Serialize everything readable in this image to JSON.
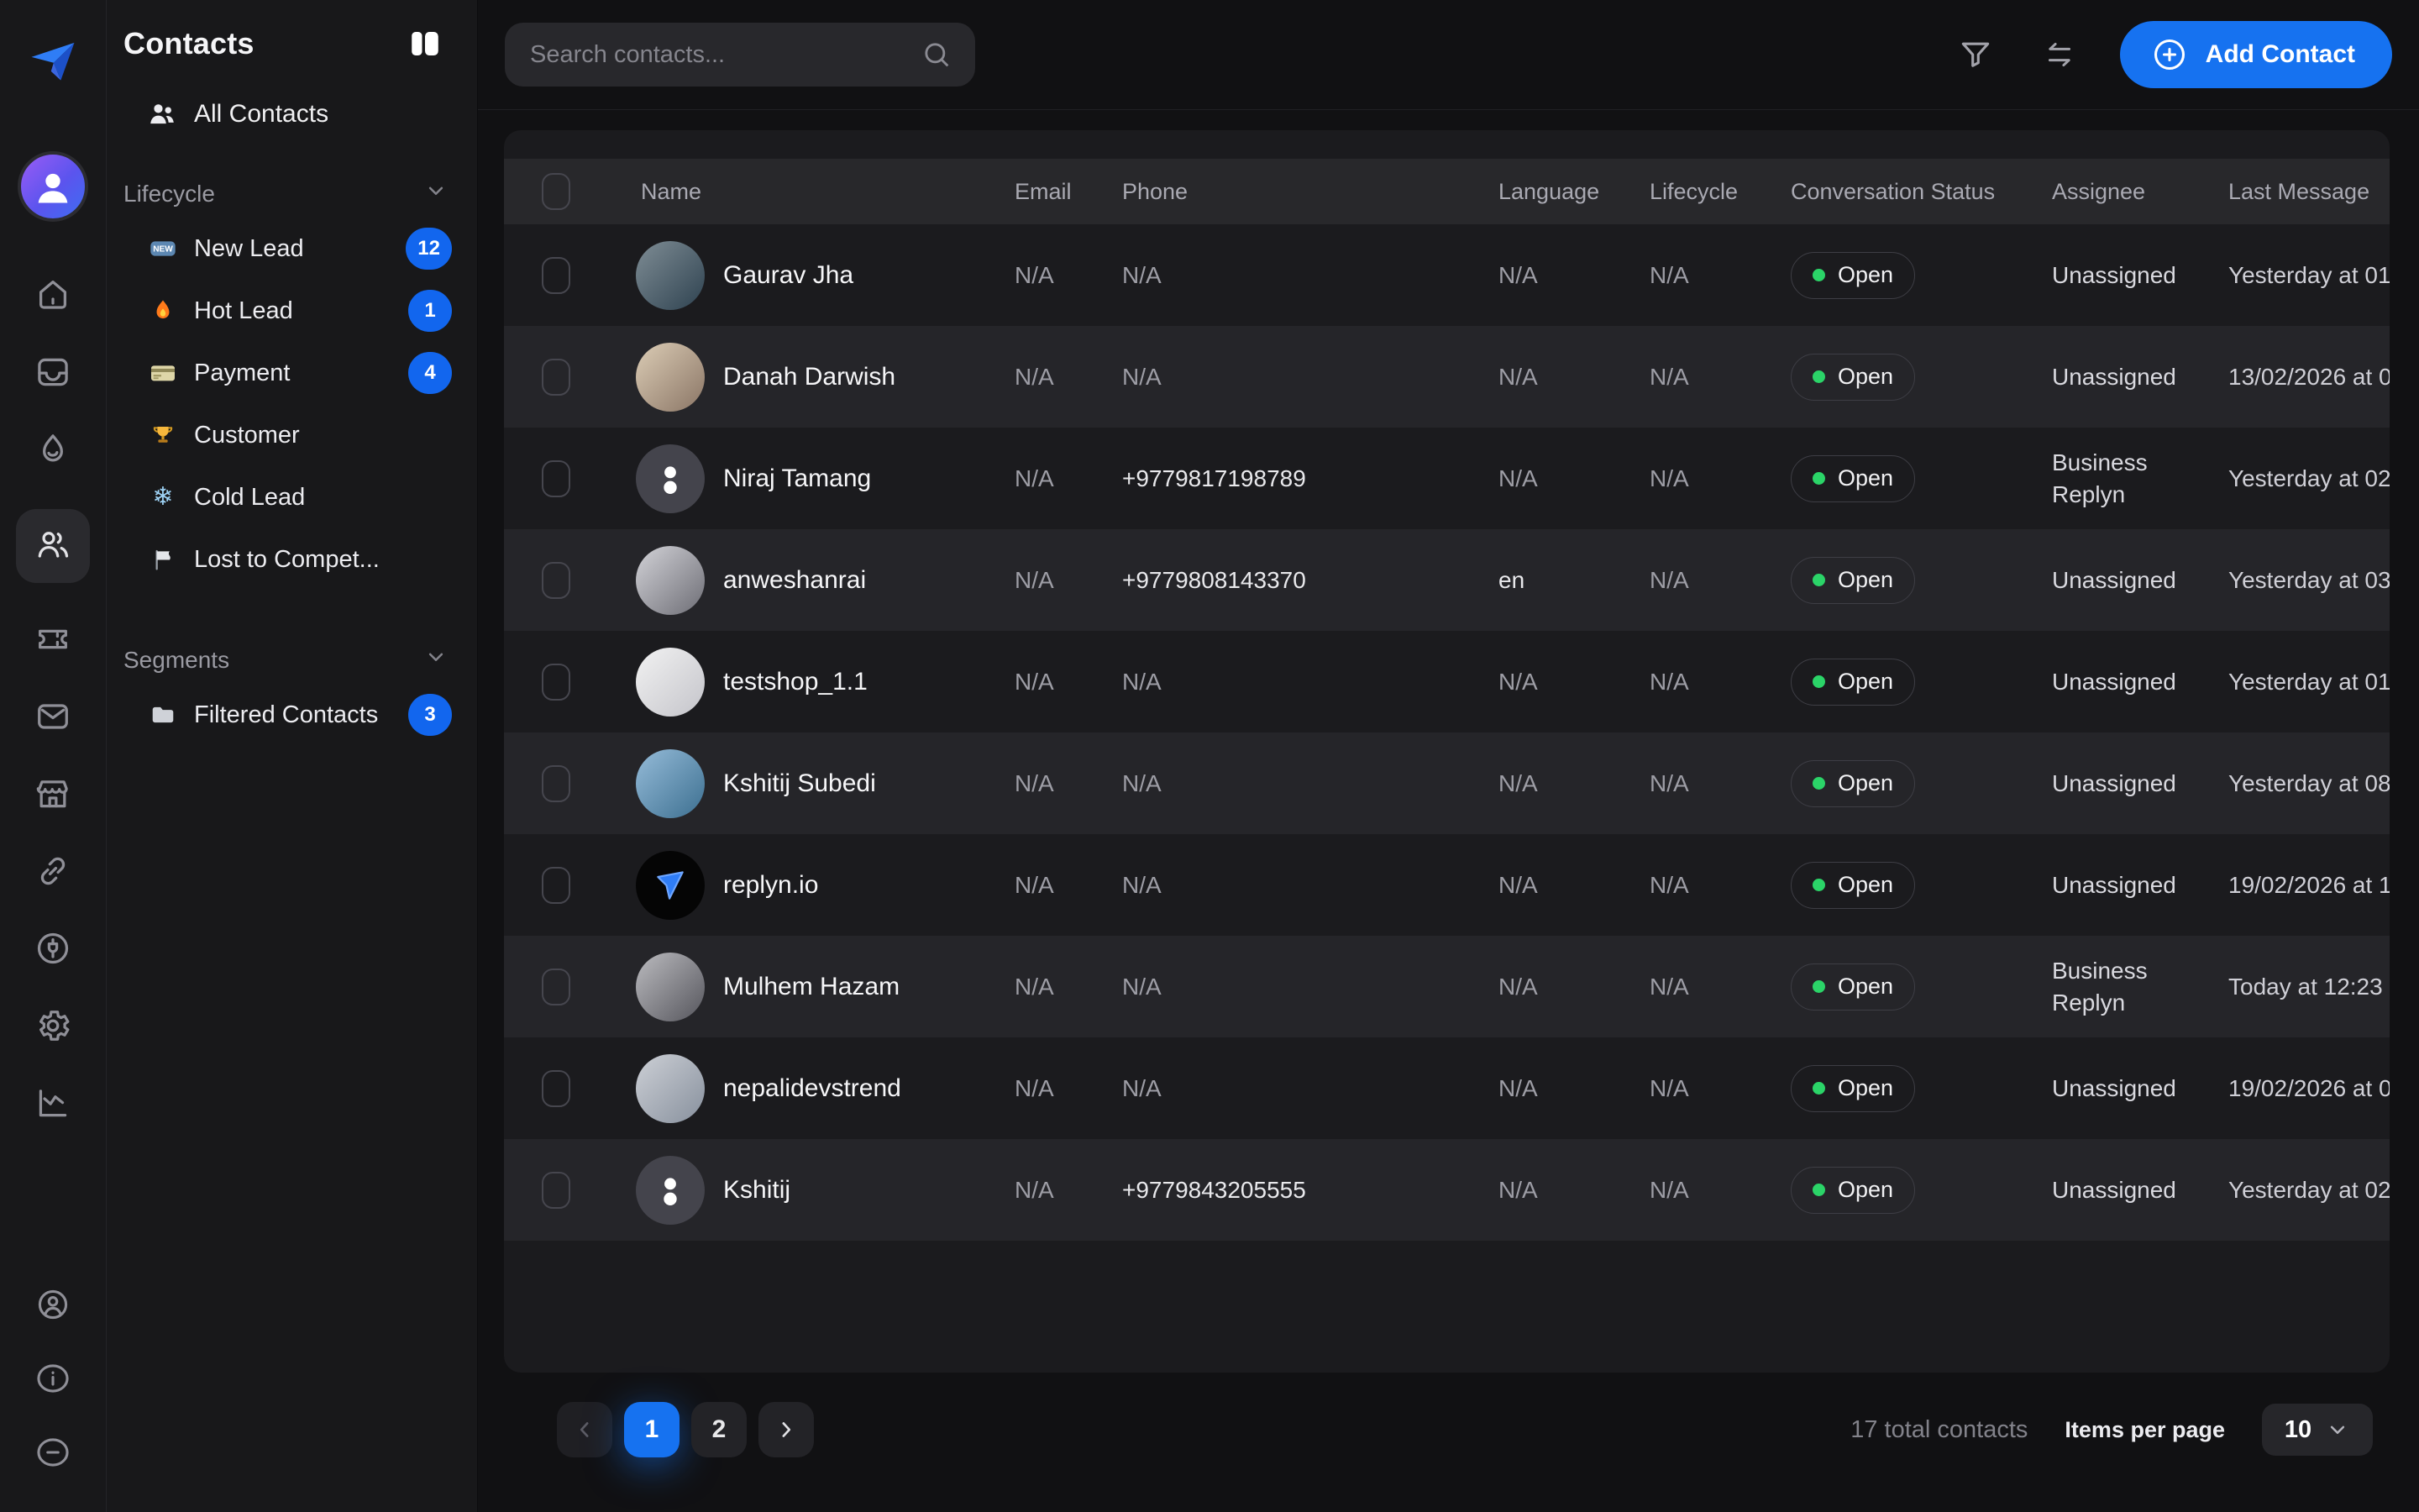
{
  "colors": {
    "accent": "#1672f0",
    "status_green": "#2bd468",
    "badge_blue": "#1266ee"
  },
  "rail": {
    "items": [
      {
        "icon": "home",
        "active": false
      },
      {
        "icon": "inbox",
        "active": false
      },
      {
        "icon": "flame",
        "active": false
      },
      {
        "icon": "contacts",
        "active": true
      },
      {
        "icon": "ticket",
        "active": false
      },
      {
        "icon": "mail",
        "active": false
      },
      {
        "icon": "store",
        "active": false
      },
      {
        "icon": "link",
        "active": false
      },
      {
        "icon": "plug",
        "active": false
      },
      {
        "icon": "settings",
        "active": false
      },
      {
        "icon": "analytics",
        "active": false
      }
    ],
    "bottom": [
      {
        "icon": "profile"
      },
      {
        "icon": "info"
      },
      {
        "icon": "minus"
      }
    ]
  },
  "sidebar": {
    "title": "Contacts",
    "all_contacts_label": "All Contacts",
    "sections": [
      {
        "label": "Lifecycle",
        "items": [
          {
            "icon": "new",
            "label": "New Lead",
            "count": "12"
          },
          {
            "icon": "flame",
            "label": "Hot Lead",
            "count": "1"
          },
          {
            "icon": "card",
            "label": "Payment",
            "count": "4"
          },
          {
            "icon": "trophy",
            "label": "Customer",
            "count": null
          },
          {
            "icon": "snowflake",
            "label": "Cold Lead",
            "count": null
          },
          {
            "icon": "flag",
            "label": "Lost to Compet...",
            "count": null
          }
        ]
      },
      {
        "label": "Segments",
        "items": [
          {
            "icon": "folder",
            "label": "Filtered Contacts",
            "count": "3"
          }
        ]
      }
    ]
  },
  "topbar": {
    "search_placeholder": "Search contacts...",
    "add_contact_label": "Add Contact"
  },
  "table": {
    "headers": [
      "Name",
      "Email",
      "Phone",
      "Language",
      "Lifecycle",
      "Conversation Status",
      "Assignee",
      "Last Message"
    ],
    "rows": [
      {
        "name": "Gaurav Jha",
        "email": "N/A",
        "phone": "N/A",
        "language": "N/A",
        "lifecycle": "N/A",
        "status": "Open",
        "assignee": "Unassigned",
        "last_message": "Yesterday at 01",
        "avatar": {
          "kind": "photo",
          "from": "#7f8d95",
          "to": "#2e4250"
        }
      },
      {
        "name": "Danah Darwish",
        "email": "N/A",
        "phone": "N/A",
        "language": "N/A",
        "lifecycle": "N/A",
        "status": "Open",
        "assignee": "Unassigned",
        "last_message": "13/02/2026 at 0",
        "avatar": {
          "kind": "photo",
          "from": "#dccdb6",
          "to": "#8a7565"
        }
      },
      {
        "name": "Niraj Tamang",
        "email": "N/A",
        "phone": "+9779817198789",
        "language": "N/A",
        "lifecycle": "N/A",
        "status": "Open",
        "assignee": "Business Replyn",
        "last_message": "Yesterday at 02",
        "avatar": {
          "kind": "default"
        }
      },
      {
        "name": "anweshanrai",
        "email": "N/A",
        "phone": "+9779808143370",
        "language": "en",
        "lifecycle": "N/A",
        "status": "Open",
        "assignee": "Unassigned",
        "last_message": "Yesterday at 03",
        "avatar": {
          "kind": "photo",
          "from": "#d3d3d8",
          "to": "#6d6d75"
        }
      },
      {
        "name": "testshop_1.1",
        "email": "N/A",
        "phone": "N/A",
        "language": "N/A",
        "lifecycle": "N/A",
        "status": "Open",
        "assignee": "Unassigned",
        "last_message": "Yesterday at 01",
        "avatar": {
          "kind": "photo",
          "from": "#f2f2f2",
          "to": "#c4c4ca"
        }
      },
      {
        "name": "Kshitij Subedi",
        "email": "N/A",
        "phone": "N/A",
        "language": "N/A",
        "lifecycle": "N/A",
        "status": "Open",
        "assignee": "Unassigned",
        "last_message": "Yesterday at 08",
        "avatar": {
          "kind": "photo",
          "from": "#96bcd9",
          "to": "#3c6f90"
        }
      },
      {
        "name": "replyn.io",
        "email": "N/A",
        "phone": "N/A",
        "language": "N/A",
        "lifecycle": "N/A",
        "status": "Open",
        "assignee": "Unassigned",
        "last_message": "19/02/2026 at 1",
        "avatar": {
          "kind": "logo"
        }
      },
      {
        "name": "Mulhem Hazam",
        "email": "N/A",
        "phone": "N/A",
        "language": "N/A",
        "lifecycle": "N/A",
        "status": "Open",
        "assignee": "Business Replyn",
        "last_message": "Today at 12:23",
        "avatar": {
          "kind": "photo",
          "from": "#bcbcc0",
          "to": "#55555c"
        }
      },
      {
        "name": "nepalidevstrend",
        "email": "N/A",
        "phone": "N/A",
        "language": "N/A",
        "lifecycle": "N/A",
        "status": "Open",
        "assignee": "Unassigned",
        "last_message": "19/02/2026 at 0",
        "avatar": {
          "kind": "photo",
          "from": "#cdd0d6",
          "to": "#87909d"
        }
      },
      {
        "name": "Kshitij",
        "email": "N/A",
        "phone": "+9779843205555",
        "language": "N/A",
        "lifecycle": "N/A",
        "status": "Open",
        "assignee": "Unassigned",
        "last_message": "Yesterday at 02",
        "avatar": {
          "kind": "default"
        }
      }
    ]
  },
  "pagination": {
    "pages": [
      "1",
      "2"
    ],
    "active_page": "1",
    "total_label": "17 total contacts",
    "items_per_page_label": "Items per page",
    "items_per_page_value": "10"
  }
}
